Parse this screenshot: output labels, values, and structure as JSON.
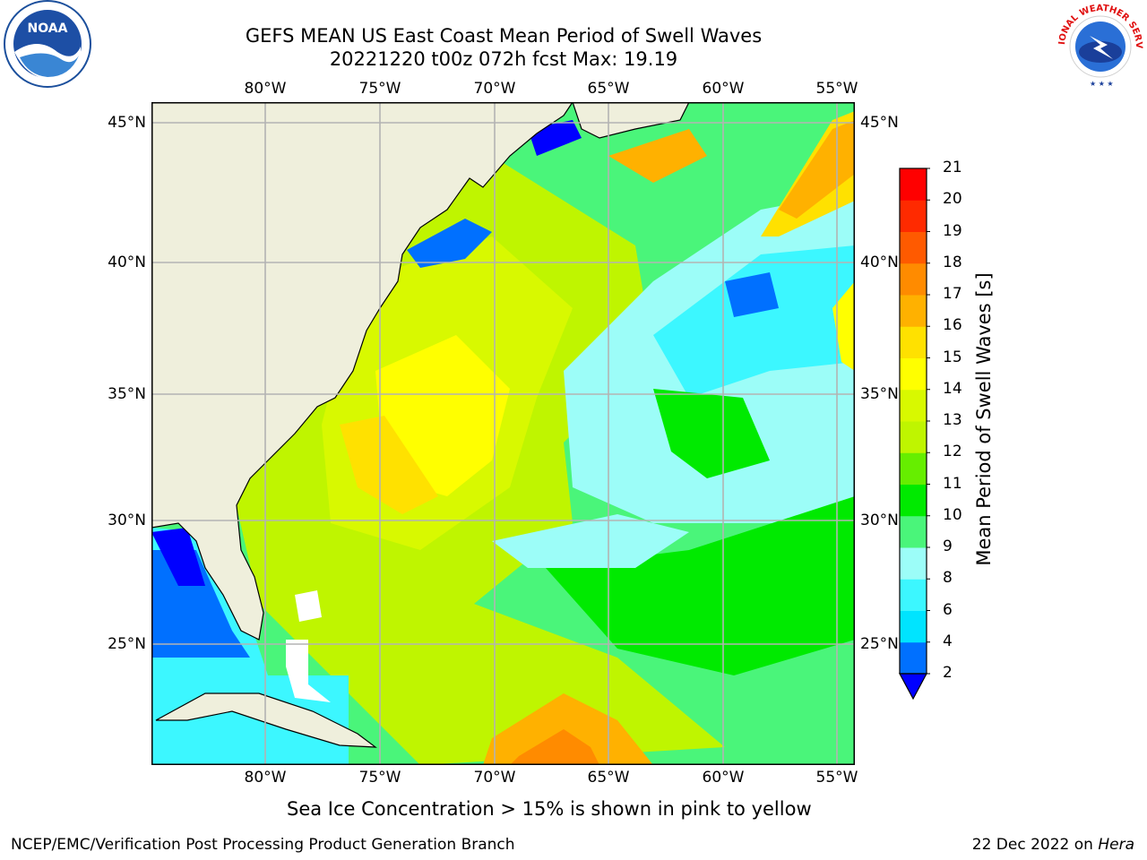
{
  "titles": {
    "line1": "GEFS MEAN US East Coast Mean Period of Swell Waves",
    "line2": "20221220 t00z 072h fcst   Max: 19.19"
  },
  "map": {
    "lon_labels": [
      "80°W",
      "75°W",
      "70°W",
      "65°W",
      "60°W",
      "55°W"
    ],
    "lat_labels": [
      "45°N",
      "40°N",
      "35°N",
      "30°N",
      "25°N"
    ],
    "colors": {
      "land": "#efefdc",
      "frame": "#000000",
      "grid": "#b3b3b3",
      "ice": "#ffffff"
    }
  },
  "colorbar": {
    "title": "Mean Period of Swell Waves [s]",
    "labels": [
      "2",
      "4",
      "6",
      "8",
      "9",
      "10",
      "11",
      "12",
      "13",
      "14",
      "15",
      "16",
      "17",
      "18",
      "19",
      "20",
      "21"
    ],
    "colors": [
      "#0000ff",
      "#0070ff",
      "#00e4ff",
      "#3cf7ff",
      "#9cfdf8",
      "#4af57a",
      "#00ea00",
      "#66ee00",
      "#bff500",
      "#d8f900",
      "#ffff00",
      "#ffe100",
      "#ffb100",
      "#ff8b00",
      "#ff5a00",
      "#ff2a00",
      "#ff0000"
    ],
    "under_color": "#0000ff"
  },
  "note": "Sea Ice Concentration > 15% is shown in pink to yellow",
  "footer": {
    "left": "NCEP/EMC/Verification Post Processing Product Generation Branch",
    "right_date": "22 Dec 2022 on ",
    "right_host": "Hera"
  },
  "logos": {
    "noaa": "NOAA",
    "nws_arc": "NATIONAL WEATHER SERVICE"
  }
}
